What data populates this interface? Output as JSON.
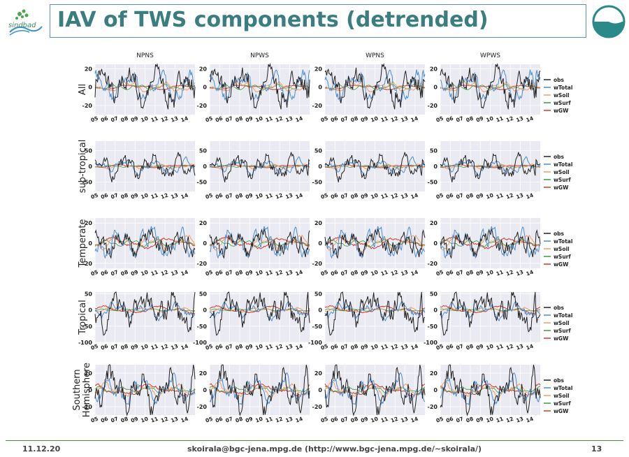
{
  "header": {
    "title": "IAV of TWS components (detrended)",
    "logo_left_text": "sindbad",
    "accent": "#3a7e80",
    "border": "#5b8fc9"
  },
  "footer": {
    "date": "11.12.20",
    "contact": "skoirala@bgc-jena.mpg.de (http://www.bgc-jena.mpg.de/~skoirala/)",
    "page": "13"
  },
  "chart_data": {
    "type": "line",
    "layout": "small-multiples 5x4",
    "columns": [
      "NPNS",
      "NPWS",
      "WPNS",
      "WPWS"
    ],
    "x_tick_labels": [
      "05",
      "06",
      "07",
      "08",
      "09",
      "10",
      "11",
      "12",
      "13",
      "14"
    ],
    "x_range": [
      2005,
      2014.99
    ],
    "grid": true,
    "legend_placement": "right of each row",
    "series": [
      {
        "name": "obs",
        "color": "#222222"
      },
      {
        "name": "wTotal",
        "color": "#4c8ed0"
      },
      {
        "name": "wSoil",
        "color": "#f0a060"
      },
      {
        "name": "wSurf",
        "color": "#3a9a3a"
      },
      {
        "name": "wGW",
        "color": "#d03a2a"
      }
    ],
    "rows": [
      {
        "label": "All",
        "ylim": [
          -30,
          25
        ],
        "yticks": [
          -20,
          0,
          20
        ],
        "amp_obs": 14,
        "amp_total": 10,
        "amp_soil": 4,
        "amp_gw": 2
      },
      {
        "label": "sub-tropical",
        "ylim": [
          -80,
          80
        ],
        "yticks": [
          -50,
          0,
          50
        ],
        "amp_obs": 20,
        "amp_total": 14,
        "amp_soil": 5,
        "amp_gw": 3
      },
      {
        "label": "Temperate",
        "ylim": [
          -25,
          25
        ],
        "yticks": [
          -20,
          0,
          20
        ],
        "amp_obs": 8,
        "amp_total": 10,
        "amp_soil": 5,
        "amp_gw": 4
      },
      {
        "label": "Tropical",
        "ylim": [
          -100,
          55
        ],
        "yticks": [
          -100,
          -50,
          0,
          50
        ],
        "amp_obs": 35,
        "amp_total": 15,
        "amp_soil": 5,
        "amp_gw": 8
      },
      {
        "label": "Southern Hemisphere",
        "ylim": [
          -30,
          30
        ],
        "yticks": [
          -20,
          0,
          20
        ],
        "amp_obs": 15,
        "amp_total": 10,
        "amp_soil": 5,
        "amp_gw": 5
      }
    ]
  }
}
